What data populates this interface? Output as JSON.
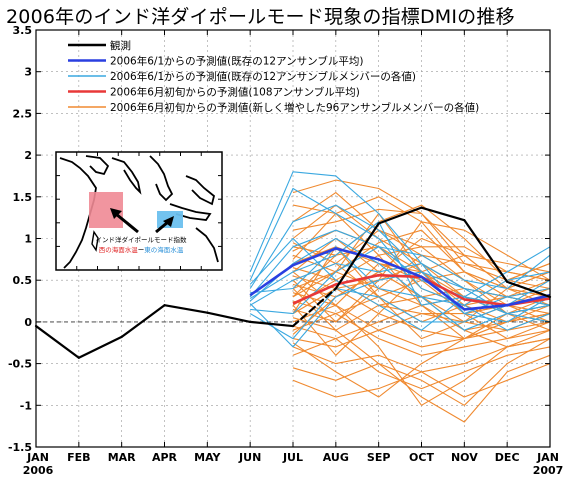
{
  "title": "2006年のインド洋ダイポールモード現象の指標DMIの推移",
  "chart_data": {
    "type": "line",
    "categories": [
      "JAN",
      "FEB",
      "MAR",
      "APR",
      "MAY",
      "JUN",
      "JUL",
      "AUG",
      "SEP",
      "OCT",
      "NOV",
      "DEC",
      "JAN"
    ],
    "x_year_labels": [
      "2006",
      "2007"
    ],
    "ylim": [
      -1.5,
      3.5
    ],
    "yticks": [
      "-1.5",
      "-1",
      "-0.5",
      "0",
      "0.5",
      "1",
      "1.5",
      "2",
      "2.5",
      "3",
      "3.5"
    ],
    "grid": true,
    "legend_position": "top",
    "legend": [
      {
        "label": "観測",
        "color": "#000000"
      },
      {
        "label": "2006年6/1からの予測値(既存の12アンサンブル平均)",
        "color": "#2a3fe0"
      },
      {
        "label": "2006年6/1からの予測値(既存の12アンサンブルメンバーの各値)",
        "color": "#3aa8e0"
      },
      {
        "label": "2006年6月初旬からの予測値(108アンサンブル平均)",
        "color": "#e83838"
      },
      {
        "label": "2006年6月初旬からの予測値(新しく増やした96アンサンブルメンバーの各値)",
        "color": "#f08a30"
      }
    ],
    "observed": {
      "x": [
        0,
        1,
        2,
        3,
        4,
        5,
        6,
        7,
        8,
        9,
        10,
        11,
        12
      ],
      "y": [
        -0.05,
        -0.43,
        -0.18,
        0.2,
        0.11,
        0.0,
        -0.05,
        0.4,
        1.18,
        1.37,
        1.22,
        0.48,
        0.3
      ],
      "dashed_segment": [
        6,
        7
      ]
    },
    "mean_12": {
      "x": [
        5,
        6,
        7,
        8,
        9,
        10,
        11,
        12
      ],
      "y": [
        0.32,
        0.68,
        0.88,
        0.75,
        0.54,
        0.15,
        0.2,
        0.32
      ]
    },
    "mean_108": {
      "x": [
        6,
        7,
        8,
        9,
        10,
        11,
        12
      ],
      "y": [
        0.22,
        0.45,
        0.56,
        0.54,
        0.27,
        0.2,
        0.28
      ]
    },
    "members_12": [
      [
        0.6,
        1.8,
        1.75,
        1.3,
        0.7,
        0.4,
        0.3,
        0.2
      ],
      [
        0.5,
        1.6,
        1.3,
        1.0,
        0.4,
        0.2,
        0.5,
        0.6
      ],
      [
        0.4,
        1.2,
        1.4,
        1.1,
        0.6,
        0.1,
        0.0,
        0.3
      ],
      [
        0.3,
        0.9,
        1.1,
        0.9,
        0.5,
        0.3,
        0.2,
        0.5
      ],
      [
        0.25,
        0.7,
        1.0,
        0.7,
        0.3,
        -0.1,
        0.1,
        0.2
      ],
      [
        0.2,
        0.5,
        0.7,
        0.6,
        0.7,
        0.1,
        0.3,
        0.4
      ],
      [
        0.35,
        0.4,
        0.9,
        0.4,
        0.3,
        0.2,
        -0.1,
        0.1
      ],
      [
        0.15,
        0.1,
        0.6,
        0.9,
        0.8,
        0.5,
        0.4,
        0.8
      ],
      [
        0.1,
        -0.2,
        0.4,
        0.3,
        0.0,
        0.0,
        0.2,
        0.3
      ],
      [
        0.45,
        1.0,
        0.5,
        0.2,
        -0.1,
        0.3,
        0.1,
        0.0
      ],
      [
        0.28,
        0.6,
        0.8,
        1.2,
        0.2,
        0.3,
        0.6,
        0.9
      ],
      [
        0.22,
        -0.3,
        0.3,
        0.5,
        0.6,
        0.4,
        0.1,
        0.2
      ]
    ],
    "members_96": [
      [
        1.55,
        1.7,
        1.6,
        1.3,
        0.8,
        0.4,
        0.6
      ],
      [
        1.4,
        1.3,
        1.5,
        1.2,
        0.6,
        0.3,
        0.4
      ],
      [
        1.2,
        1.55,
        1.1,
        0.9,
        0.5,
        0.2,
        0.3
      ],
      [
        1.1,
        1.2,
        1.35,
        1.3,
        0.7,
        0.6,
        0.5
      ],
      [
        1.0,
        1.4,
        1.0,
        0.7,
        0.3,
        0.1,
        0.2
      ],
      [
        0.9,
        0.8,
        1.2,
        1.4,
        1.0,
        0.5,
        0.7
      ],
      [
        0.85,
        1.1,
        0.9,
        0.6,
        0.2,
        0.0,
        0.1
      ],
      [
        0.8,
        0.6,
        0.95,
        1.1,
        0.6,
        0.4,
        0.3
      ],
      [
        0.7,
        0.9,
        0.7,
        0.5,
        0.1,
        0.2,
        0.4
      ],
      [
        0.65,
        0.5,
        0.8,
        0.9,
        0.9,
        0.6,
        0.5
      ],
      [
        0.6,
        1.0,
        0.6,
        0.3,
        0.0,
        -0.1,
        0.1
      ],
      [
        0.55,
        0.4,
        0.5,
        0.7,
        0.4,
        0.3,
        0.2
      ],
      [
        0.5,
        0.7,
        1.1,
        0.8,
        0.5,
        0.1,
        0.0
      ],
      [
        0.45,
        0.3,
        0.6,
        1.0,
        0.8,
        0.7,
        0.6
      ],
      [
        0.4,
        0.6,
        0.4,
        0.2,
        -0.1,
        0.0,
        0.2
      ],
      [
        0.35,
        0.2,
        0.7,
        0.6,
        0.3,
        0.2,
        0.1
      ],
      [
        0.3,
        0.8,
        0.9,
        0.4,
        0.2,
        0.3,
        0.5
      ],
      [
        0.25,
        0.1,
        0.3,
        0.5,
        0.6,
        0.4,
        0.3
      ],
      [
        0.2,
        0.5,
        0.2,
        0.1,
        0.1,
        0.2,
        0.0
      ],
      [
        0.15,
        0.0,
        0.4,
        0.8,
        0.7,
        0.5,
        0.4
      ],
      [
        0.1,
        0.4,
        0.1,
        -0.1,
        -0.2,
        0.0,
        0.1
      ],
      [
        0.05,
        -0.1,
        0.2,
        0.3,
        0.4,
        0.3,
        0.2
      ],
      [
        0.0,
        0.2,
        -0.1,
        -0.3,
        -0.2,
        -0.1,
        0.0
      ],
      [
        -0.05,
        -0.2,
        0.0,
        0.2,
        0.3,
        0.1,
        -0.1
      ],
      [
        -0.1,
        0.1,
        -0.2,
        -0.4,
        -0.3,
        -0.2,
        -0.1
      ],
      [
        -0.2,
        -0.3,
        -0.1,
        0.1,
        0.0,
        0.2,
        0.3
      ],
      [
        -0.3,
        -0.5,
        -0.4,
        -0.6,
        -0.5,
        -0.3,
        -0.2
      ],
      [
        -0.4,
        -0.2,
        -0.6,
        -0.8,
        -0.6,
        -0.4,
        -0.3
      ],
      [
        -0.55,
        -0.7,
        -0.5,
        -0.9,
        -1.2,
        -0.6,
        -0.4
      ],
      [
        -0.7,
        -0.9,
        -0.8,
        -0.6,
        -0.9,
        -0.7,
        -0.5
      ],
      [
        0.95,
        0.7,
        0.3,
        0.0,
        0.2,
        0.5,
        0.7
      ],
      [
        0.75,
        1.3,
        0.8,
        0.2,
        -0.2,
        0.1,
        0.3
      ],
      [
        0.5,
        0.0,
        0.5,
        1.2,
        1.1,
        0.8,
        0.5
      ],
      [
        0.3,
        0.6,
        1.3,
        0.6,
        0.1,
        -0.2,
        0.0
      ],
      [
        0.2,
        -0.4,
        0.1,
        0.6,
        0.8,
        0.4,
        0.2
      ],
      [
        0.1,
        0.9,
        0.3,
        -0.2,
        0.0,
        0.4,
        0.6
      ],
      [
        -0.15,
        0.3,
        0.6,
        0.3,
        -0.1,
        -0.3,
        -0.2
      ],
      [
        -0.25,
        -0.6,
        -0.9,
        -0.5,
        -0.2,
        0.0,
        0.1
      ],
      [
        0.6,
        0.2,
        -0.3,
        -1.0,
        -0.7,
        -0.3,
        -0.1
      ],
      [
        0.4,
        -0.1,
        -0.5,
        -0.7,
        -1.0,
        -0.5,
        -0.2
      ]
    ],
    "annotations": {
      "box_label": "インド洋ダイポールモード指数",
      "west_label": "西の海面水温",
      "minus": "ー",
      "east_label": "東の海面水温"
    },
    "colors": {
      "observed": "#000000",
      "mean_12": "#2a3fe0",
      "members_12": "#3aa8e0",
      "mean_108": "#e83838",
      "members_96": "#f08a30",
      "grid": "#9a9a9a",
      "west_box": "#f08a95",
      "east_box": "#6cc0ee"
    }
  }
}
